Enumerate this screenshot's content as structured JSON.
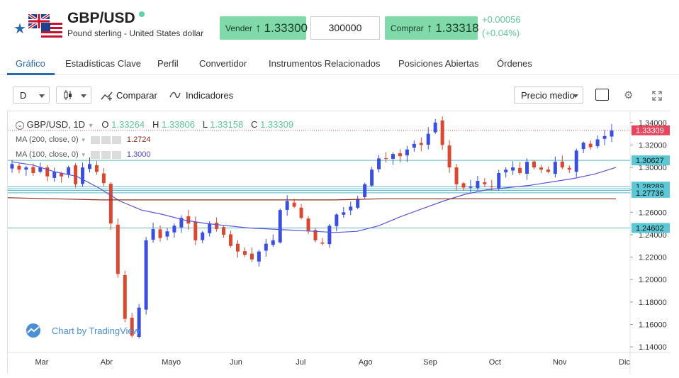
{
  "header": {
    "symbol": "GBP/USD",
    "subtitle": "Pound sterling - United States dollar",
    "sell_label": "Vender",
    "sell_price": "1.33300",
    "quantity": "300000",
    "buy_label": "Comprar",
    "buy_price": "1.33318",
    "change_abs": "+0.00056",
    "change_pct": "(+0.04%)",
    "colors": {
      "buy_sell_bg": "#7fd9a8",
      "positive": "#5fc796",
      "accent": "#2a6bb0"
    }
  },
  "tabs": [
    "Gráfico",
    "Estadísticas Clave",
    "Perfil",
    "Convertidor",
    "Instrumentos Relacionados",
    "Posiciones Abiertas",
    "Órdenes"
  ],
  "toolbar": {
    "interval": "D",
    "compare_label": "Comparar",
    "indicators_label": "Indicadores",
    "price_mode": "Precio medio"
  },
  "legend": {
    "title": "GBP/USD, 1D",
    "o_label": "O",
    "o": "1.33264",
    "h_label": "H",
    "h": "1.33806",
    "l_label": "L",
    "l": "1.33158",
    "c_label": "C",
    "c": "1.33309",
    "ma200_label": "MA (200, close, 0)",
    "ma200_value": "1.2724",
    "ma100_label": "MA (100, close, 0)",
    "ma100_value": "1.3000"
  },
  "watermark": "Chart by TradingView",
  "chart_data": {
    "type": "candlestick",
    "x_tick_labels": [
      "Mar",
      "Abr",
      "Mayo",
      "Jun",
      "Jul",
      "Ago",
      "Sep",
      "Oct",
      "Nov",
      "Dic"
    ],
    "y_tick_labels": [
      "1.34000",
      "1.32000",
      "1.30000",
      "1.28000",
      "1.26000",
      "1.24000",
      "1.22000",
      "1.20000",
      "1.18000",
      "1.16000",
      "1.14000"
    ],
    "ylim": [
      1.135,
      1.35
    ],
    "price_tags": [
      {
        "value": 1.33309,
        "label": "1.33309",
        "kind": "last"
      },
      {
        "value": 1.30627,
        "label": "1.30627",
        "kind": "line"
      },
      {
        "value": 1.28289,
        "label": "1.28289",
        "kind": "line"
      },
      {
        "value": 1.27736,
        "label": "1.27736",
        "kind": "line"
      },
      {
        "value": 1.24602,
        "label": "1.24602",
        "kind": "line"
      }
    ],
    "extra_levels": [
      1.281,
      1.2795
    ],
    "closes_weekly": [
      1.303,
      1.298,
      1.3,
      1.295,
      1.3,
      1.292,
      1.296,
      1.292,
      1.3,
      1.285,
      1.3,
      1.303,
      1.296,
      1.286,
      1.25,
      1.205,
      1.165,
      1.15,
      1.175,
      1.235,
      1.245,
      1.237,
      1.243,
      1.248,
      1.255,
      1.25,
      1.235,
      1.242,
      1.25,
      1.245,
      1.24,
      1.23,
      1.225,
      1.222,
      1.218,
      1.225,
      1.232,
      1.235,
      1.262,
      1.27,
      1.265,
      1.255,
      1.243,
      1.235,
      1.232,
      1.248,
      1.258,
      1.26,
      1.265,
      1.272,
      1.285,
      1.298,
      1.308,
      1.308,
      1.312,
      1.31,
      1.316,
      1.321,
      1.32,
      1.33,
      1.34,
      1.32,
      1.3,
      1.285,
      1.282,
      1.283,
      1.288,
      1.285,
      1.283,
      1.295,
      1.298,
      1.3,
      1.295,
      1.305,
      1.3,
      1.298,
      1.296,
      1.305,
      1.3,
      1.298,
      1.315,
      1.322,
      1.318,
      1.325,
      1.328,
      1.333
    ],
    "ma100_values": [
      1.305,
      1.302,
      1.296,
      1.292,
      1.282,
      1.27,
      1.262,
      1.258,
      1.253,
      1.25,
      1.248,
      1.246,
      1.245,
      1.244,
      1.243,
      1.242,
      1.243,
      1.248,
      1.256,
      1.263,
      1.27,
      1.276,
      1.28,
      1.282,
      1.284,
      1.287,
      1.29,
      1.294,
      1.3
    ],
    "ma200_values": [
      1.273,
      1.272,
      1.271,
      1.271,
      1.271,
      1.271,
      1.271,
      1.271,
      1.272,
      1.272,
      1.272,
      1.272,
      1.272,
      1.272
    ]
  }
}
